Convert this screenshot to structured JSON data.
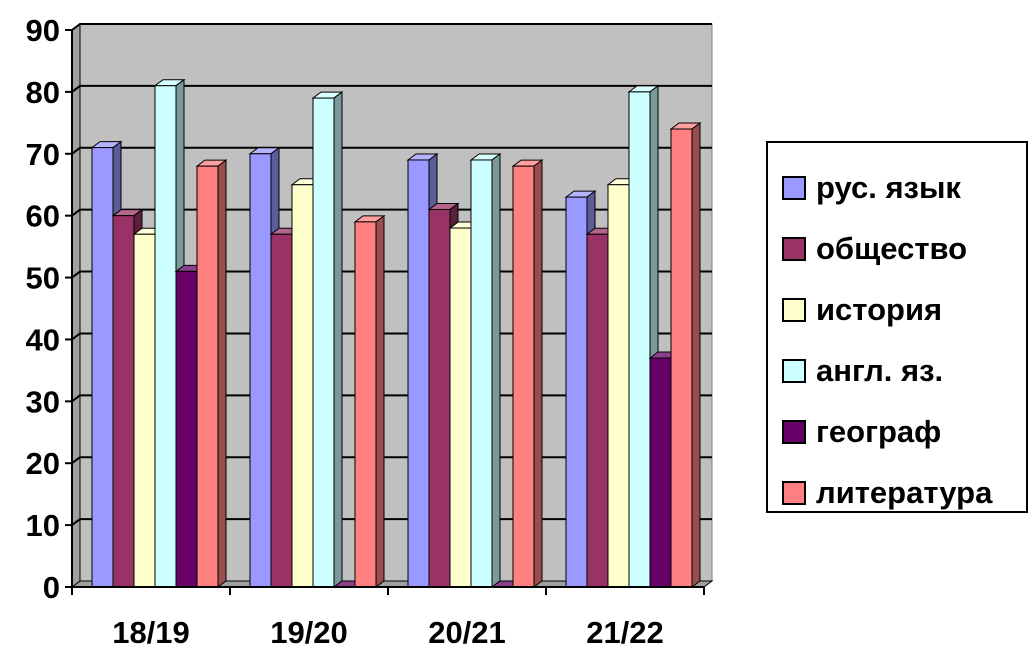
{
  "chart_data": {
    "type": "bar",
    "title": "",
    "xlabel": "",
    "ylabel": "",
    "ylim": [
      0,
      90
    ],
    "yticks": [
      0,
      10,
      20,
      30,
      40,
      50,
      60,
      70,
      80,
      90
    ],
    "grid": true,
    "legend_position": "right",
    "categories": [
      "18/19",
      "19/20",
      "20/21",
      "21/22"
    ],
    "series": [
      {
        "name": "рус. язык",
        "color": "#9999ff",
        "values": [
          71,
          70,
          69,
          63
        ]
      },
      {
        "name": "общество",
        "color": "#993366",
        "values": [
          60,
          57,
          61,
          57
        ]
      },
      {
        "name": "история",
        "color": "#ffffcc",
        "values": [
          57,
          65,
          58,
          65
        ]
      },
      {
        "name": "англ. яз.",
        "color": "#ccffff",
        "values": [
          81,
          79,
          69,
          80
        ]
      },
      {
        "name": "географ",
        "color": "#660066",
        "values": [
          51,
          0,
          0,
          37
        ]
      },
      {
        "name": "литература",
        "color": "#ff8080",
        "values": [
          68,
          59,
          68,
          74
        ]
      }
    ]
  }
}
